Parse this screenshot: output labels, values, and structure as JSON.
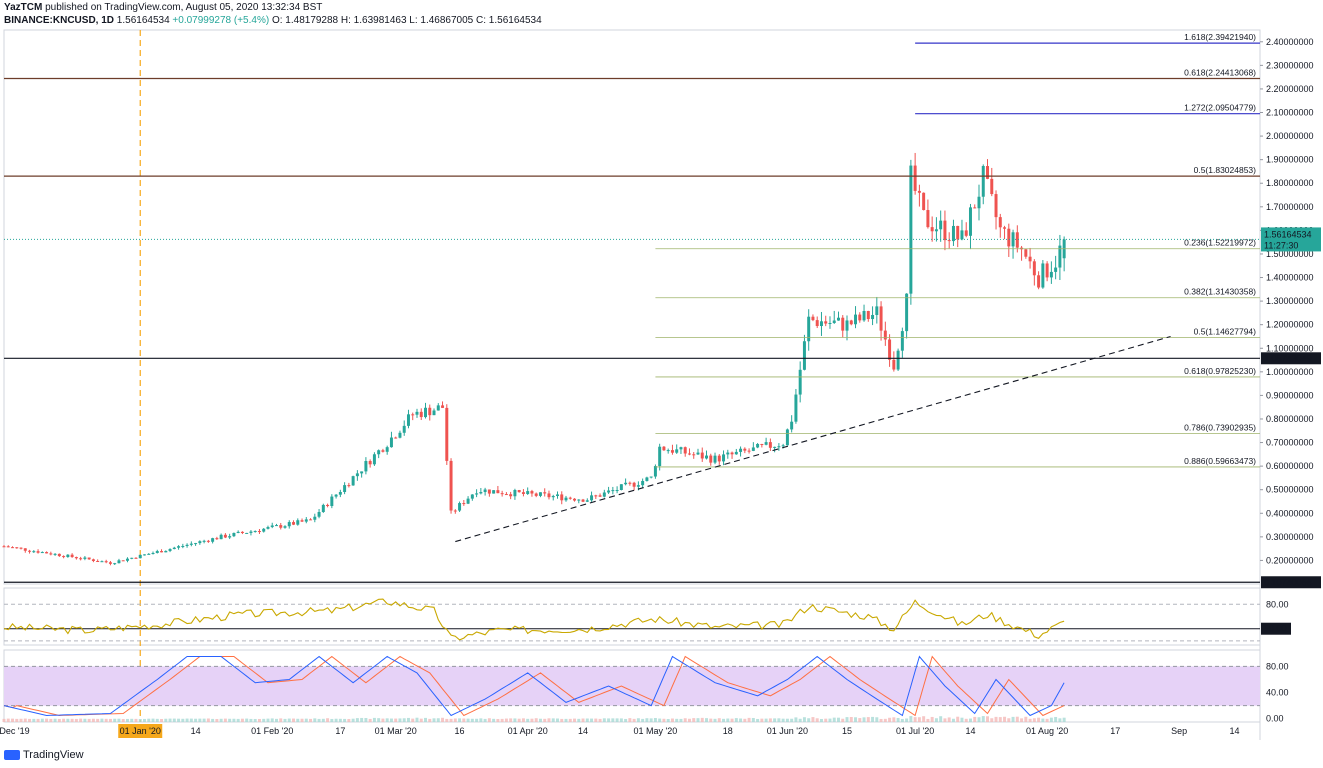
{
  "header": {
    "author": "YazTCM",
    "published": "published on TradingView.com, August 05, 2020 13:32:34 BST",
    "symbol": "BINANCE:KNCUSD, 1D",
    "last": "1.56164534",
    "change": "+0.07999278 (+5.4%)",
    "ohlc": "O: 1.48179288 H: 1.63981463 L: 1.46867005 C: 1.56164534"
  },
  "brand": "TradingView",
  "colors": {
    "up": "#26a69a",
    "down": "#ef5350",
    "fib_blue": "#3535c8",
    "fib_green": "#9fb36a",
    "level_brown": "#6d3d2a",
    "rsi": "#c9a800",
    "stoch_band": "#e6d2f7",
    "stoch_k": "#2962ff",
    "stoch_d": "#ff7043",
    "price_tag": "#26a69a"
  },
  "chart_data": [
    {
      "type": "candlestick",
      "title": "",
      "ylim": [
        0.1,
        2.45
      ],
      "y_ticks": [
        "2.40000000",
        "2.30000000",
        "2.20000000",
        "2.10000000",
        "2.00000000",
        "1.90000000",
        "1.80000000",
        "1.70000000",
        "1.60000000",
        "1.50000000",
        "1.40000000",
        "1.30000000",
        "1.20000000",
        "1.10000000",
        "1.00000000",
        "0.90000000",
        "0.80000000",
        "0.70000000",
        "0.60000000",
        "0.50000000",
        "0.40000000",
        "0.30000000",
        "0.20000000"
      ],
      "x_ticks": [
        "01 Dec '19",
        "01 Jan '20",
        "14",
        "01 Feb '20",
        "17",
        "01 Mar '20",
        "16",
        "01 Apr '20",
        "14",
        "01 May '20",
        "18",
        "01 Jun '20",
        "15",
        "01 Jul '20",
        "14",
        "01 Aug '20",
        "17",
        "Sep",
        "14"
      ],
      "x_range": [
        "2019-11-30",
        "2020-09-20"
      ],
      "vertical_marker_date": "2020-01-01",
      "key_points": [
        [
          "2019-11-30",
          0.26
        ],
        [
          "2019-12-25",
          0.19
        ],
        [
          "2020-01-20",
          0.3
        ],
        [
          "2020-02-10",
          0.37
        ],
        [
          "2020-02-28",
          0.7
        ],
        [
          "2020-03-05",
          0.82
        ],
        [
          "2020-03-12",
          0.85
        ],
        [
          "2020-03-14",
          0.4
        ],
        [
          "2020-03-20",
          0.5
        ],
        [
          "2020-04-01",
          0.48
        ],
        [
          "2020-04-15",
          0.46
        ],
        [
          "2020-04-30",
          0.55
        ],
        [
          "2020-05-02",
          0.68
        ],
        [
          "2020-05-15",
          0.63
        ],
        [
          "2020-05-31",
          0.7
        ],
        [
          "2020-06-02",
          0.8
        ],
        [
          "2020-06-06",
          1.22
        ],
        [
          "2020-06-15",
          1.2
        ],
        [
          "2020-06-22",
          1.25
        ],
        [
          "2020-06-26",
          1.03
        ],
        [
          "2020-06-29",
          1.3
        ],
        [
          "2020-06-30",
          1.82
        ],
        [
          "2020-07-03",
          1.65
        ],
        [
          "2020-07-12",
          1.56
        ],
        [
          "2020-07-17",
          1.82
        ],
        [
          "2020-07-21",
          1.6
        ],
        [
          "2020-07-26",
          1.52
        ],
        [
          "2020-07-30",
          1.4
        ],
        [
          "2020-08-03",
          1.47
        ],
        [
          "2020-08-05",
          1.56164534
        ]
      ],
      "fib_levels": [
        {
          "label": "1.618(2.39421940)",
          "value": 2.3942194,
          "color": "blue"
        },
        {
          "label": "0.618(2.24413068)",
          "value": 2.24413068,
          "color": "brown"
        },
        {
          "label": "1.272(2.09504779)",
          "value": 2.09504779,
          "color": "blue"
        },
        {
          "label": "0.5(1.83024853)",
          "value": 1.83024853,
          "color": "brown"
        },
        {
          "label": "0.236(1.52219972)",
          "value": 1.52219972,
          "color": "green"
        },
        {
          "label": "0.382(1.31430358)",
          "value": 1.31430358,
          "color": "green"
        },
        {
          "label": "0.5(1.14627794)",
          "value": 1.14627794,
          "color": "green"
        },
        {
          "label": "0.618(0.97825230)",
          "value": 0.9782523,
          "color": "green"
        },
        {
          "label": "0.786(0.73902935)",
          "value": 0.73902935,
          "color": "green"
        },
        {
          "label": "0.886(0.59663473)",
          "value": 0.59663473,
          "color": "green"
        }
      ],
      "horizontal_levels": [
        {
          "label": "1.05743049",
          "value": 1.05743049
        },
        {
          "label": "0.10740066",
          "value": 0.10740066
        }
      ],
      "trendline": {
        "start": [
          "2020-03-15",
          0.28
        ],
        "end": [
          "2020-08-30",
          1.15
        ]
      },
      "price_tag": {
        "value": "1.56164534",
        "time": "11:27:30"
      }
    },
    {
      "type": "line",
      "name": "RSI",
      "ylim": [
        30,
        100
      ],
      "y_ticks": [
        "80.00"
      ],
      "level": {
        "label": "50.00",
        "value": 50
      },
      "values_by_date": [
        [
          "2019-11-30",
          52
        ],
        [
          "2019-12-20",
          48
        ],
        [
          "2020-01-05",
          55
        ],
        [
          "2020-01-25",
          68
        ],
        [
          "2020-02-15",
          72
        ],
        [
          "2020-02-28",
          84
        ],
        [
          "2020-03-10",
          72
        ],
        [
          "2020-03-14",
          38
        ],
        [
          "2020-03-25",
          48
        ],
        [
          "2020-04-15",
          50
        ],
        [
          "2020-05-01",
          62
        ],
        [
          "2020-05-15",
          52
        ],
        [
          "2020-05-31",
          55
        ],
        [
          "2020-06-06",
          78
        ],
        [
          "2020-06-20",
          65
        ],
        [
          "2020-06-26",
          50
        ],
        [
          "2020-07-01",
          83
        ],
        [
          "2020-07-12",
          55
        ],
        [
          "2020-07-18",
          68
        ],
        [
          "2020-07-25",
          52
        ],
        [
          "2020-07-30",
          42
        ],
        [
          "2020-08-05",
          58
        ]
      ]
    },
    {
      "type": "line",
      "name": "Stoch RSI",
      "ylim": [
        -5,
        105
      ],
      "y_ticks": [
        "80.00",
        "40.00",
        "0.00"
      ],
      "values_by_date": [
        [
          "2019-11-30",
          20
        ],
        [
          "2019-12-10",
          5
        ],
        [
          "2019-12-25",
          8
        ],
        [
          "2020-01-05",
          60
        ],
        [
          "2020-01-12",
          95
        ],
        [
          "2020-01-20",
          95
        ],
        [
          "2020-01-28",
          55
        ],
        [
          "2020-02-05",
          60
        ],
        [
          "2020-02-12",
          95
        ],
        [
          "2020-02-20",
          55
        ],
        [
          "2020-02-28",
          95
        ],
        [
          "2020-03-06",
          70
        ],
        [
          "2020-03-14",
          5
        ],
        [
          "2020-03-22",
          30
        ],
        [
          "2020-04-01",
          70
        ],
        [
          "2020-04-10",
          25
        ],
        [
          "2020-04-20",
          50
        ],
        [
          "2020-04-30",
          20
        ],
        [
          "2020-05-05",
          95
        ],
        [
          "2020-05-15",
          55
        ],
        [
          "2020-05-25",
          35
        ],
        [
          "2020-06-01",
          60
        ],
        [
          "2020-06-08",
          95
        ],
        [
          "2020-06-15",
          60
        ],
        [
          "2020-06-22",
          30
        ],
        [
          "2020-06-28",
          5
        ],
        [
          "2020-07-02",
          95
        ],
        [
          "2020-07-08",
          50
        ],
        [
          "2020-07-15",
          8
        ],
        [
          "2020-07-20",
          60
        ],
        [
          "2020-07-28",
          5
        ],
        [
          "2020-08-02",
          20
        ],
        [
          "2020-08-05",
          55
        ]
      ]
    }
  ]
}
